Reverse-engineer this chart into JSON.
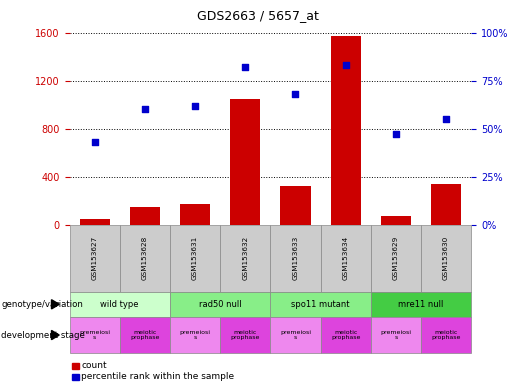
{
  "title": "GDS2663 / 5657_at",
  "samples": [
    "GSM153627",
    "GSM153628",
    "GSM153631",
    "GSM153632",
    "GSM153633",
    "GSM153634",
    "GSM153629",
    "GSM153630"
  ],
  "counts": [
    50,
    150,
    175,
    1050,
    320,
    1575,
    75,
    340
  ],
  "percentile_ranks": [
    43,
    60,
    62,
    82,
    68,
    83,
    47,
    55
  ],
  "ylim_left": [
    0,
    1600
  ],
  "ylim_right": [
    0,
    100
  ],
  "yticks_left": [
    0,
    400,
    800,
    1200,
    1600
  ],
  "yticks_right": [
    0,
    25,
    50,
    75,
    100
  ],
  "bar_color": "#cc0000",
  "dot_color": "#0000cc",
  "genotype_groups": [
    {
      "label": "wild type",
      "start": 0,
      "end": 2,
      "color": "#ccffcc"
    },
    {
      "label": "rad50 null",
      "start": 2,
      "end": 4,
      "color": "#88ee88"
    },
    {
      "label": "spo11 mutant",
      "start": 4,
      "end": 6,
      "color": "#88ee88"
    },
    {
      "label": "mre11 null",
      "start": 6,
      "end": 8,
      "color": "#44cc44"
    }
  ],
  "dev_stage_groups": [
    {
      "label": "premeiosi\ns",
      "start": 0,
      "end": 1,
      "color": "#ee88ee"
    },
    {
      "label": "meiotic\nprophase",
      "start": 1,
      "end": 2,
      "color": "#dd44dd"
    },
    {
      "label": "premeiosi\ns",
      "start": 2,
      "end": 3,
      "color": "#ee88ee"
    },
    {
      "label": "meiotic\nprophase",
      "start": 3,
      "end": 4,
      "color": "#dd44dd"
    },
    {
      "label": "premeiosi\ns",
      "start": 4,
      "end": 5,
      "color": "#ee88ee"
    },
    {
      "label": "meiotic\nprophase",
      "start": 5,
      "end": 6,
      "color": "#dd44dd"
    },
    {
      "label": "premeiosi\ns",
      "start": 6,
      "end": 7,
      "color": "#ee88ee"
    },
    {
      "label": "meiotic\nprophase",
      "start": 7,
      "end": 8,
      "color": "#dd44dd"
    }
  ],
  "left_axis_color": "#cc0000",
  "right_axis_color": "#0000cc",
  "background_color": "#ffffff",
  "tick_label_area_bg": "#cccccc",
  "fig_width": 5.15,
  "fig_height": 3.84,
  "dpi": 100
}
